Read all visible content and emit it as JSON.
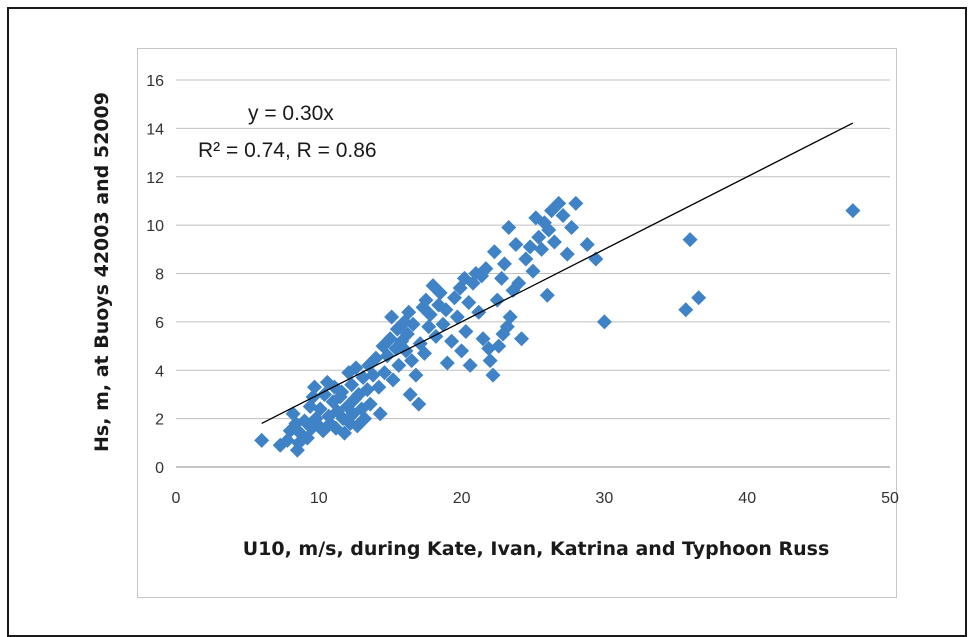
{
  "chart_data": {
    "type": "scatter",
    "xlabel": "U10, m/s, during Kate, Ivan, Katrina and Typhoon Russ",
    "ylabel": "Hs, m, at Buoys 42003 and 52009",
    "xlim": [
      0,
      50
    ],
    "ylim": [
      0,
      16
    ],
    "x_ticks": [
      "0",
      "10",
      "20",
      "30",
      "40",
      "50"
    ],
    "y_ticks": [
      "0",
      "2",
      "4",
      "6",
      "8",
      "10",
      "12",
      "14",
      "16"
    ],
    "grid": "horizontal",
    "marker_color": "#3f83c6",
    "trendline_color": "#000000",
    "annotations": [
      "y = 0.30x",
      "R² = 0.74, R = 0.86"
    ],
    "trendline": {
      "slope": 0.3,
      "x_range": [
        6,
        47.4
      ]
    },
    "points": [
      [
        6,
        1.1
      ],
      [
        7.3,
        0.9
      ],
      [
        7.8,
        1.1
      ],
      [
        8,
        1.5
      ],
      [
        8.2,
        2.2
      ],
      [
        8.4,
        1.8
      ],
      [
        8.5,
        0.7
      ],
      [
        8.6,
        1.0
      ],
      [
        8.7,
        1.4
      ],
      [
        9,
        1.9
      ],
      [
        9.2,
        1.2
      ],
      [
        9.4,
        2.5
      ],
      [
        9.5,
        1.6
      ],
      [
        9.6,
        2.9
      ],
      [
        9.7,
        3.3
      ],
      [
        9.8,
        2.0
      ],
      [
        10,
        1.7
      ],
      [
        10.1,
        2.4
      ],
      [
        10.3,
        1.5
      ],
      [
        10.4,
        3.0
      ],
      [
        10.6,
        3.5
      ],
      [
        10.7,
        2.1
      ],
      [
        10.8,
        1.8
      ],
      [
        11,
        2.7
      ],
      [
        11.1,
        3.3
      ],
      [
        11.2,
        1.6
      ],
      [
        11.3,
        2.3
      ],
      [
        11.5,
        2.9
      ],
      [
        11.6,
        3.1
      ],
      [
        11.7,
        2.0
      ],
      [
        11.8,
        1.4
      ],
      [
        12,
        2.5
      ],
      [
        12.1,
        3.9
      ],
      [
        12.2,
        1.8
      ],
      [
        12.3,
        3.4
      ],
      [
        12.4,
        2.2
      ],
      [
        12.5,
        2.8
      ],
      [
        12.6,
        4.1
      ],
      [
        12.7,
        1.7
      ],
      [
        12.8,
        3.0
      ],
      [
        13,
        2.4
      ],
      [
        13.1,
        3.7
      ],
      [
        13.2,
        2.0
      ],
      [
        13.4,
        3.2
      ],
      [
        13.5,
        4.2
      ],
      [
        13.6,
        2.6
      ],
      [
        13.8,
        3.8
      ],
      [
        14,
        4.5
      ],
      [
        14.2,
        3.3
      ],
      [
        14.3,
        2.2
      ],
      [
        14.5,
        5.0
      ],
      [
        14.6,
        3.9
      ],
      [
        14.8,
        4.6
      ],
      [
        15,
        5.3
      ],
      [
        15.1,
        6.2
      ],
      [
        15.2,
        3.6
      ],
      [
        15.4,
        4.9
      ],
      [
        15.5,
        5.7
      ],
      [
        15.6,
        4.2
      ],
      [
        15.8,
        5.2
      ],
      [
        16,
        6.0
      ],
      [
        16.1,
        4.8
      ],
      [
        16.2,
        5.5
      ],
      [
        16.3,
        6.4
      ],
      [
        16.4,
        3.0
      ],
      [
        16.5,
        4.4
      ],
      [
        16.6,
        5.9
      ],
      [
        16.8,
        3.8
      ],
      [
        17,
        2.6
      ],
      [
        17.1,
        5.1
      ],
      [
        17.3,
        6.6
      ],
      [
        17.4,
        4.7
      ],
      [
        17.5,
        6.9
      ],
      [
        17.7,
        5.8
      ],
      [
        17.8,
        6.3
      ],
      [
        18,
        7.5
      ],
      [
        18.2,
        5.4
      ],
      [
        18.4,
        6.7
      ],
      [
        18.5,
        7.2
      ],
      [
        18.7,
        5.9
      ],
      [
        18.9,
        6.5
      ],
      [
        19,
        4.3
      ],
      [
        19.3,
        5.2
      ],
      [
        19.5,
        7.0
      ],
      [
        19.7,
        6.2
      ],
      [
        19.9,
        7.4
      ],
      [
        20,
        4.8
      ],
      [
        20.2,
        7.8
      ],
      [
        20.3,
        5.6
      ],
      [
        20.5,
        6.8
      ],
      [
        20.6,
        4.2
      ],
      [
        20.8,
        7.6
      ],
      [
        21,
        8.0
      ],
      [
        21.2,
        6.4
      ],
      [
        21.4,
        7.9
      ],
      [
        21.5,
        5.3
      ],
      [
        21.7,
        8.2
      ],
      [
        21.9,
        4.9
      ],
      [
        22,
        4.4
      ],
      [
        22.2,
        3.8
      ],
      [
        22.3,
        8.9
      ],
      [
        22.5,
        6.9
      ],
      [
        22.6,
        5.0
      ],
      [
        22.8,
        7.8
      ],
      [
        22.9,
        5.5
      ],
      [
        23,
        8.4
      ],
      [
        23.2,
        5.8
      ],
      [
        23.3,
        9.9
      ],
      [
        23.4,
        6.2
      ],
      [
        23.6,
        7.3
      ],
      [
        23.8,
        9.2
      ],
      [
        24,
        7.6
      ],
      [
        24.2,
        5.3
      ],
      [
        24.5,
        8.6
      ],
      [
        24.8,
        9.1
      ],
      [
        25,
        8.1
      ],
      [
        25.2,
        10.3
      ],
      [
        25.4,
        9.5
      ],
      [
        25.6,
        9.0
      ],
      [
        25.8,
        10.1
      ],
      [
        26,
        7.1
      ],
      [
        26.1,
        9.8
      ],
      [
        26.3,
        10.6
      ],
      [
        26.5,
        9.3
      ],
      [
        26.8,
        10.9
      ],
      [
        27.1,
        10.4
      ],
      [
        27.4,
        8.8
      ],
      [
        27.7,
        9.9
      ],
      [
        28,
        10.9
      ],
      [
        28.8,
        9.2
      ],
      [
        29.4,
        8.6
      ],
      [
        30,
        6.0
      ],
      [
        35.7,
        6.5
      ],
      [
        36,
        9.4
      ],
      [
        36.6,
        7.0
      ],
      [
        47.4,
        10.6
      ]
    ]
  }
}
